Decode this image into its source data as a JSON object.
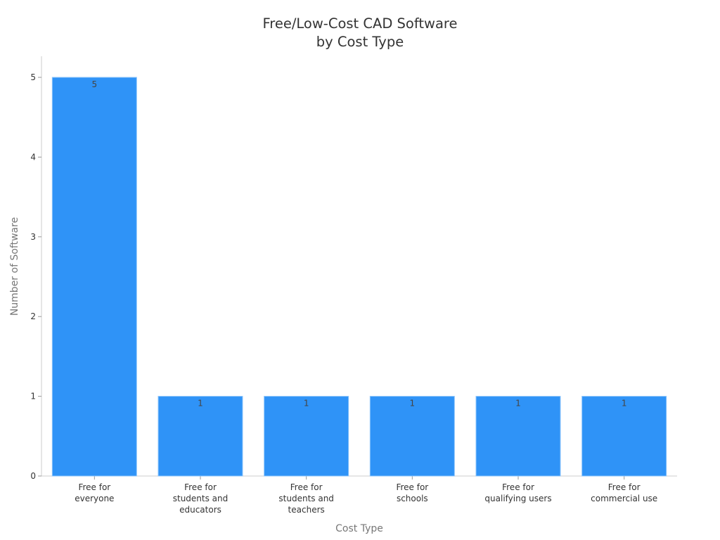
{
  "chart_data": {
    "type": "bar",
    "title": "Free/Low-Cost CAD Software\nby Cost Type",
    "title_lines": [
      "Free/Low-Cost CAD Software",
      "by Cost Type"
    ],
    "xlabel": "Cost Type",
    "ylabel": "Number of Software",
    "categories": [
      "Free for everyone",
      "Free for students and educators",
      "Free for students and teachers",
      "Free for schools",
      "Free for qualifying users",
      "Free for commercial use"
    ],
    "category_label_lines": [
      [
        "Free for",
        "everyone"
      ],
      [
        "Free for",
        "students and",
        "educators"
      ],
      [
        "Free for",
        "students and",
        "teachers"
      ],
      [
        "Free for",
        "schools"
      ],
      [
        "Free for",
        "qualifying users"
      ],
      [
        "Free for",
        "commercial use"
      ]
    ],
    "values": [
      5,
      1,
      1,
      1,
      1,
      1
    ],
    "data_labels": [
      "5",
      "1",
      "1",
      "1",
      "1",
      "1"
    ],
    "ylim": [
      0,
      5.26
    ],
    "yticks": [
      0,
      1,
      2,
      3,
      4,
      5
    ],
    "grid": false,
    "legend": null,
    "colors": {
      "bar": "#2f93f7",
      "bar_edge": "#8cc4fb",
      "axis": "#cccccc",
      "text": "#333333"
    }
  }
}
